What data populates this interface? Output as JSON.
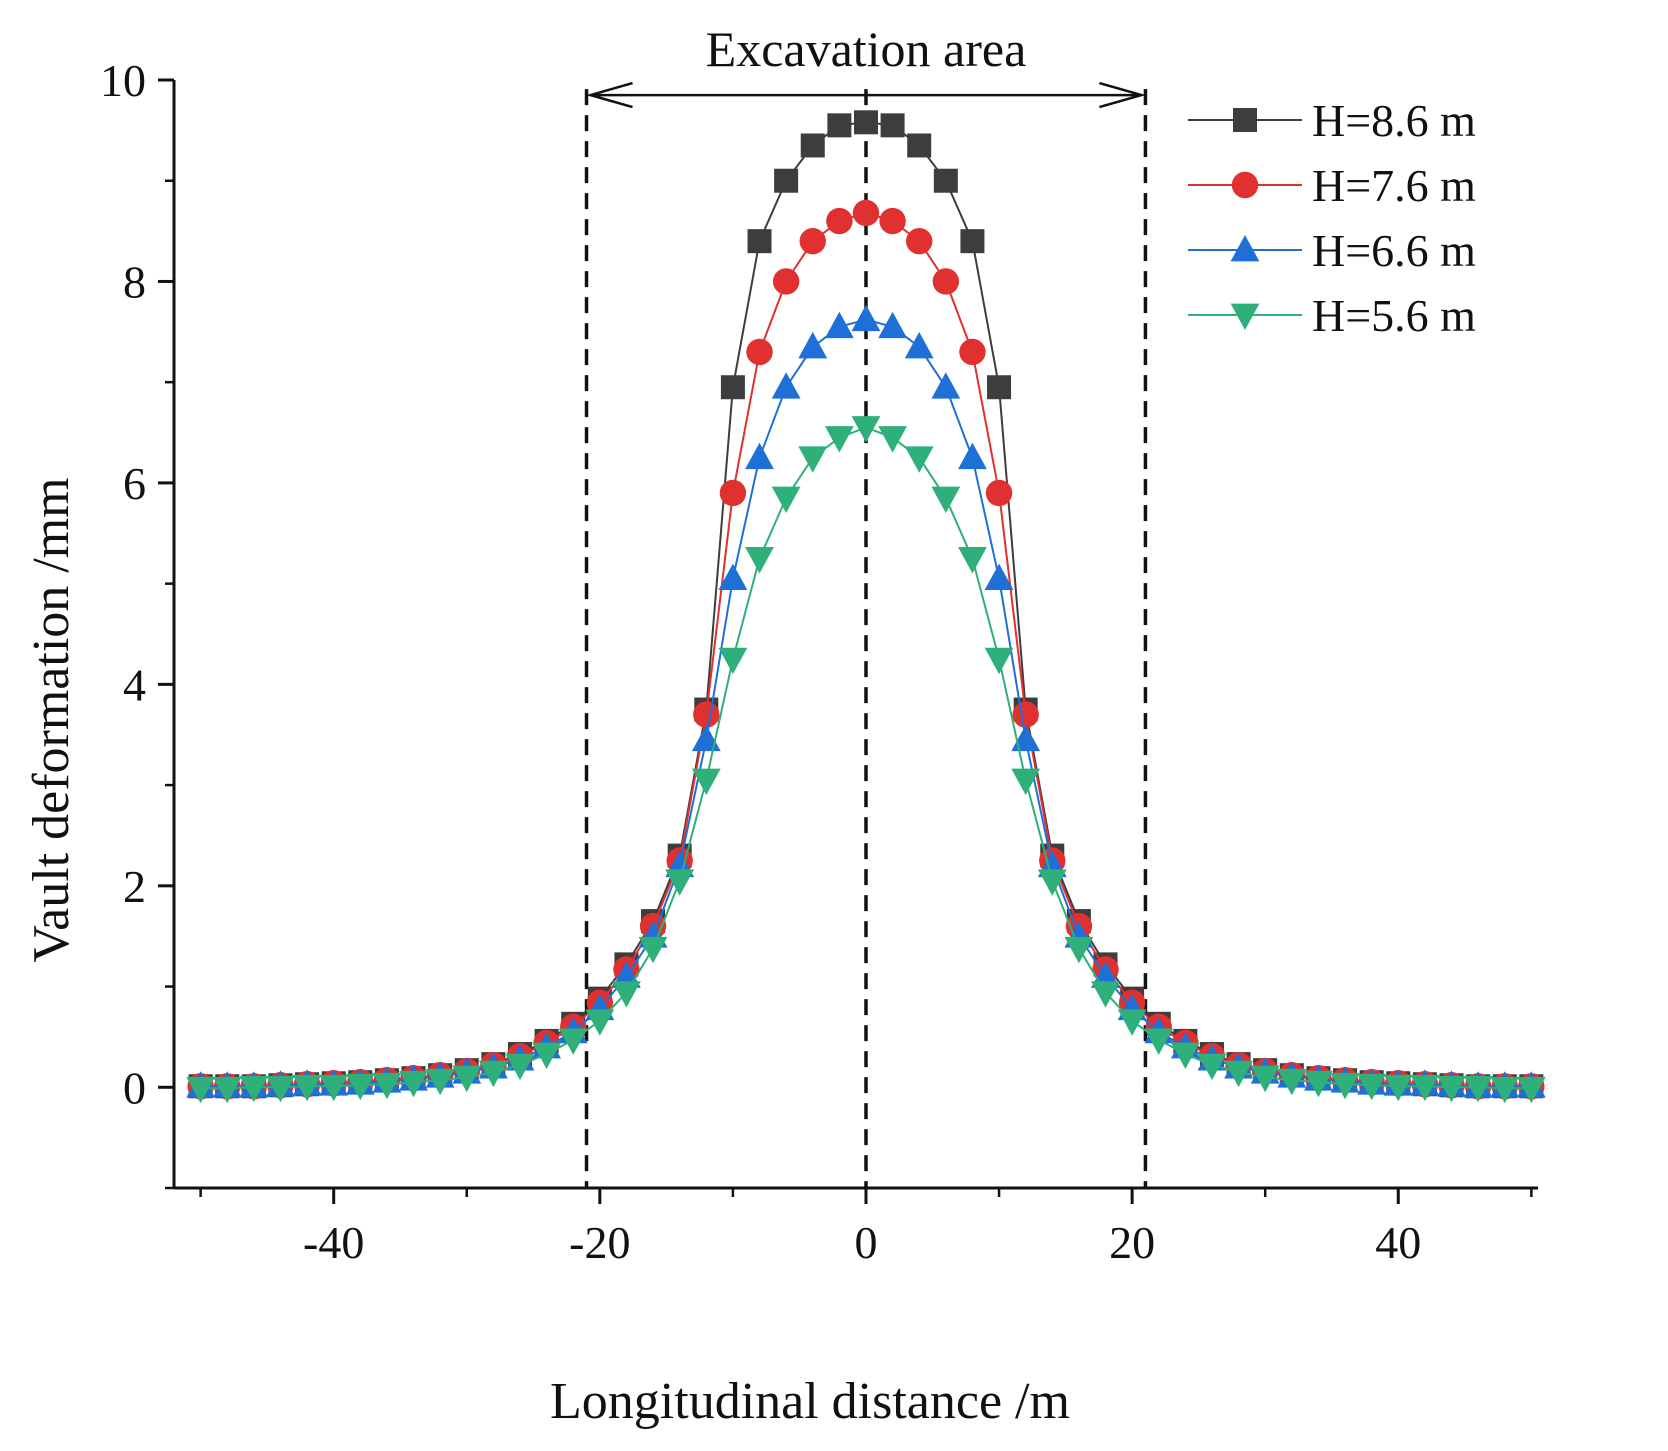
{
  "chart_data": {
    "type": "line",
    "title": "",
    "xlabel": "Longitudinal distance /m",
    "ylabel": "Vault deformation /mm",
    "xlim": [
      -52,
      50.5
    ],
    "ylim": [
      -1,
      10
    ],
    "xticks": [
      -40,
      -20,
      0,
      20,
      40
    ],
    "yticks": [
      0,
      2,
      4,
      6,
      8,
      10
    ],
    "xtick_labels": [
      "-40",
      "-20",
      "0",
      "20",
      "40"
    ],
    "ytick_labels": [
      "0",
      "2",
      "4",
      "6",
      "8",
      "10"
    ],
    "grid": false,
    "legend_position": "top-right",
    "annotation": {
      "text": "Excavation area",
      "x_start": -21,
      "x_end": 21,
      "y": 9.85,
      "dashed_vlines": [
        -21,
        0,
        21
      ]
    },
    "x": [
      -50,
      -48,
      -46,
      -44,
      -42,
      -40,
      -38,
      -36,
      -34,
      -32,
      -30,
      -28,
      -26,
      -24,
      -22,
      -20,
      -18,
      -16,
      -14,
      -12,
      -10,
      -8,
      -6,
      -4,
      -2,
      0,
      2,
      4,
      6,
      8,
      10,
      12,
      14,
      16,
      18,
      20,
      22,
      24,
      26,
      28,
      30,
      32,
      34,
      36,
      38,
      40,
      42,
      44,
      46,
      48,
      50
    ],
    "series": [
      {
        "name": "H=8.6 m",
        "color": "#3d3d3d",
        "marker": "square",
        "values": [
          0.01,
          0.01,
          0.01,
          0.02,
          0.03,
          0.04,
          0.05,
          0.07,
          0.09,
          0.12,
          0.17,
          0.23,
          0.33,
          0.46,
          0.63,
          0.88,
          1.22,
          1.65,
          2.3,
          3.75,
          6.95,
          8.4,
          9.0,
          9.35,
          9.55,
          9.58,
          9.55,
          9.35,
          9.0,
          8.4,
          6.95,
          3.75,
          2.3,
          1.65,
          1.22,
          0.88,
          0.63,
          0.46,
          0.33,
          0.23,
          0.17,
          0.12,
          0.09,
          0.07,
          0.05,
          0.04,
          0.03,
          0.02,
          0.01,
          0.01,
          0.01
        ]
      },
      {
        "name": "H=7.6 m",
        "color": "#e03030",
        "marker": "circle",
        "values": [
          0.01,
          0.01,
          0.01,
          0.02,
          0.03,
          0.04,
          0.05,
          0.07,
          0.09,
          0.12,
          0.16,
          0.22,
          0.31,
          0.44,
          0.6,
          0.84,
          1.17,
          1.6,
          2.25,
          3.7,
          5.9,
          7.3,
          8.0,
          8.4,
          8.6,
          8.68,
          8.6,
          8.4,
          8.0,
          7.3,
          5.9,
          3.7,
          2.25,
          1.6,
          1.17,
          0.84,
          0.6,
          0.44,
          0.31,
          0.22,
          0.16,
          0.12,
          0.09,
          0.07,
          0.05,
          0.04,
          0.03,
          0.02,
          0.01,
          0.01,
          0.01
        ]
      },
      {
        "name": "H=6.6 m",
        "color": "#1e6fd6",
        "marker": "triangle-up",
        "values": [
          0.01,
          0.01,
          0.01,
          0.02,
          0.03,
          0.03,
          0.04,
          0.06,
          0.08,
          0.11,
          0.15,
          0.2,
          0.28,
          0.4,
          0.55,
          0.78,
          1.1,
          1.5,
          2.2,
          3.45,
          5.05,
          6.25,
          6.95,
          7.35,
          7.55,
          7.62,
          7.55,
          7.35,
          6.95,
          6.25,
          5.05,
          3.45,
          2.2,
          1.5,
          1.1,
          0.78,
          0.55,
          0.4,
          0.28,
          0.2,
          0.15,
          0.11,
          0.08,
          0.06,
          0.04,
          0.03,
          0.03,
          0.02,
          0.01,
          0.01,
          0.01
        ]
      },
      {
        "name": "H=5.6 m",
        "color": "#2fb07a",
        "marker": "triangle-down",
        "values": [
          -0.01,
          -0.01,
          0.0,
          0.0,
          0.01,
          0.01,
          0.02,
          0.03,
          0.05,
          0.07,
          0.1,
          0.15,
          0.22,
          0.33,
          0.47,
          0.66,
          0.94,
          1.38,
          2.05,
          3.05,
          4.25,
          5.25,
          5.85,
          6.25,
          6.45,
          6.55,
          6.45,
          6.25,
          5.85,
          5.25,
          4.25,
          3.05,
          2.05,
          1.38,
          0.94,
          0.66,
          0.47,
          0.33,
          0.22,
          0.15,
          0.1,
          0.07,
          0.05,
          0.03,
          0.02,
          0.01,
          0.01,
          0.0,
          0.0,
          -0.01,
          -0.01
        ]
      }
    ]
  }
}
